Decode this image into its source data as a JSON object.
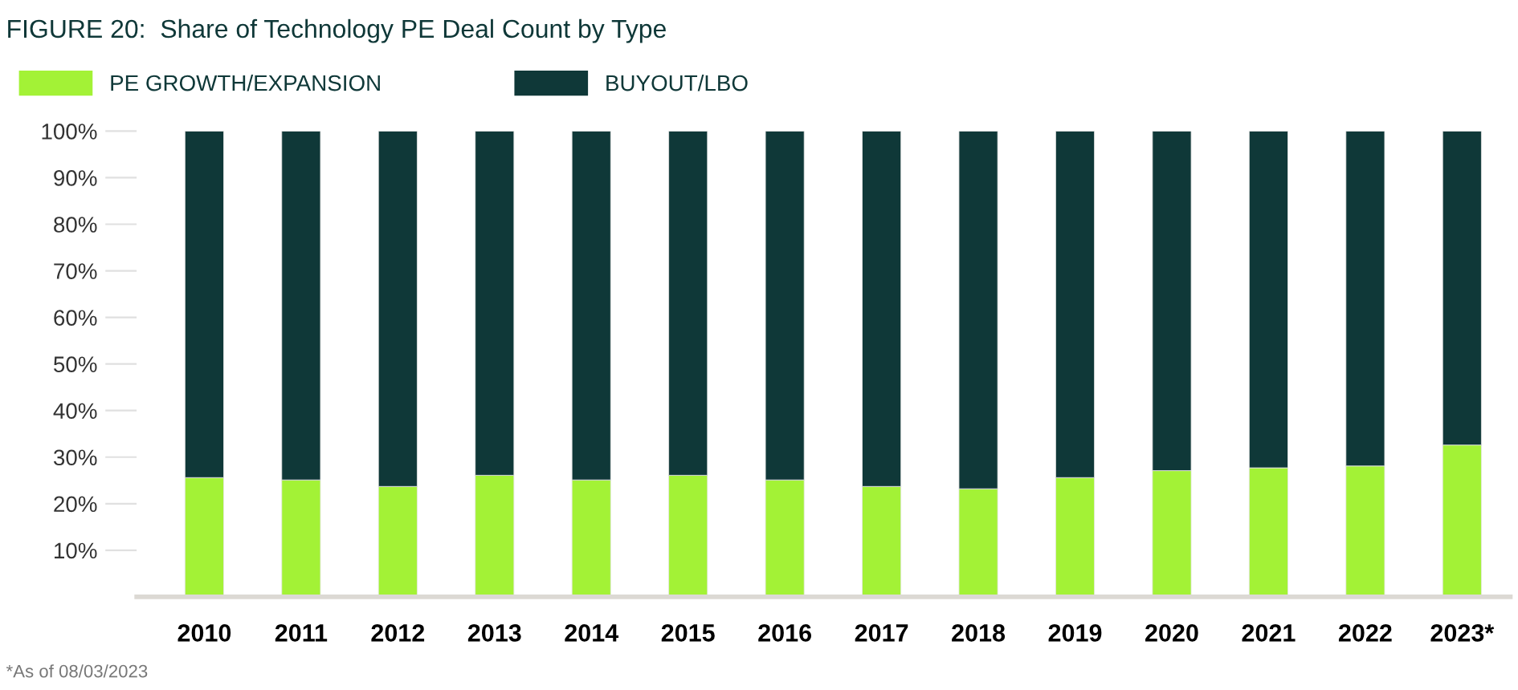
{
  "chart_data": {
    "type": "bar",
    "stacked": true,
    "title": "FIGURE 20:  Share of Technology PE Deal Count by Type",
    "categories": [
      "2010",
      "2011",
      "2012",
      "2013",
      "2014",
      "2015",
      "2016",
      "2017",
      "2018",
      "2019",
      "2020",
      "2021",
      "2022",
      "2023*"
    ],
    "series": [
      {
        "name": "PE GROWTH/EXPANSION",
        "color": "#a3f236",
        "values": [
          25.6,
          25.1,
          23.7,
          26.1,
          25.1,
          26.1,
          25.1,
          23.7,
          23.2,
          25.6,
          27.1,
          27.7,
          28.1,
          32.6
        ]
      },
      {
        "name": "BUYOUT/LBO",
        "color": "#0f3838",
        "values": [
          74.4,
          74.9,
          76.3,
          73.9,
          74.9,
          73.9,
          74.9,
          76.3,
          76.8,
          74.4,
          72.9,
          72.3,
          71.9,
          67.4
        ]
      }
    ],
    "ylim": [
      0,
      100
    ],
    "yticks": [
      {
        "value": 10,
        "label": "10%"
      },
      {
        "value": 20,
        "label": "20%"
      },
      {
        "value": 30,
        "label": "30%"
      },
      {
        "value": 40,
        "label": "40%"
      },
      {
        "value": 50,
        "label": "50%"
      },
      {
        "value": 60,
        "label": "60%"
      },
      {
        "value": 70,
        "label": "70%"
      },
      {
        "value": 80,
        "label": "80%"
      },
      {
        "value": 90,
        "label": "90%"
      },
      {
        "value": 100,
        "label": "100%"
      }
    ],
    "legend": "top left",
    "annotations": [
      "*As of 08/03/2023"
    ]
  }
}
